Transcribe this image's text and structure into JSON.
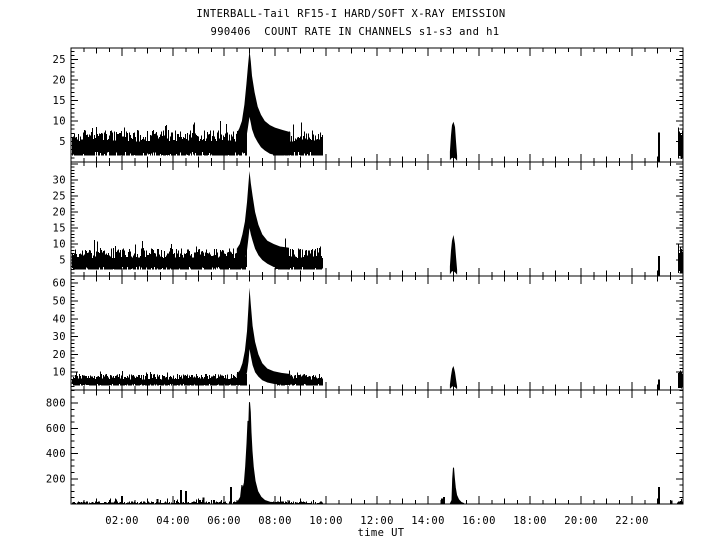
{
  "figure": {
    "title": "INTERBALL-Tail RF15-I HARD/SOFT X-RAY EMISSION",
    "subtitle": "990406  COUNT RATE IN CHANNELS s1-s3 and h1",
    "xlabel": "time UT",
    "fg_color": "#000000",
    "bg_color": "#ffffff"
  },
  "chart_data": {
    "type": "line",
    "title": "INTERBALL-Tail RF15-I HARD/SOFT X-RAY EMISSION",
    "subtitle": "990406  COUNT RATE IN CHANNELS s1-s3 and h1",
    "xlabel": "time UT",
    "grid": false,
    "legend": false,
    "noise_seed": 1999,
    "x_axis": {
      "lim": [
        0,
        24
      ],
      "labeled_hours": [
        2,
        4,
        6,
        8,
        10,
        12,
        14,
        16,
        18,
        20,
        22
      ],
      "tick_labels": [
        "02:00",
        "04:00",
        "06:00",
        "08:00",
        "10:00",
        "12:00",
        "14:00",
        "16:00",
        "18:00",
        "20:00",
        "22:00"
      ],
      "minor_step": 0.5
    },
    "panels": [
      {
        "id": "s1",
        "ylim": [
          0,
          27.8
        ],
        "ymajor": 5,
        "yminor": 1,
        "ylabels": [
          5,
          10,
          15,
          20,
          25
        ],
        "bands": [
          {
            "t": [
              0.02,
              6.88
            ],
            "lo": 1.6,
            "hi": 6.4,
            "jitter": 1.4,
            "spike": 2.5
          },
          {
            "t": [
              7.9,
              9.85
            ],
            "lo": 1.6,
            "hi": 6.4,
            "jitter": 1.4,
            "spike": 2.5
          },
          {
            "t": [
              23.78,
              23.97
            ],
            "lo": 0.8,
            "hi": 7.5,
            "jitter": 1.2,
            "spike": 1.0
          }
        ],
        "flares": [
          {
            "pts": [
              [
                6.5,
                1.6,
                7.0
              ],
              [
                6.6,
                1.9,
                8.2
              ],
              [
                6.7,
                2.6,
                10.0
              ],
              [
                6.8,
                4.0,
                14.0
              ],
              [
                6.88,
                6.0,
                19.0
              ],
              [
                6.94,
                8.5,
                23.5
              ],
              [
                7.0,
                11.0,
                27.3
              ],
              [
                7.05,
                9.5,
                24.5
              ],
              [
                7.1,
                8.0,
                21.0
              ],
              [
                7.2,
                6.2,
                17.0
              ],
              [
                7.32,
                4.8,
                13.5
              ],
              [
                7.45,
                3.6,
                11.5
              ],
              [
                7.6,
                2.8,
                10.0
              ],
              [
                7.8,
                2.0,
                9.0
              ],
              [
                8.0,
                1.7,
                8.4
              ],
              [
                8.3,
                1.6,
                7.8
              ],
              [
                8.6,
                1.6,
                7.3
              ]
            ]
          },
          {
            "pts": [
              [
                14.86,
                0.4,
                2.5
              ],
              [
                14.9,
                0.8,
                6.5
              ],
              [
                14.94,
                1.0,
                9.0
              ],
              [
                15.0,
                1.0,
                9.8
              ],
              [
                15.06,
                0.9,
                8.5
              ],
              [
                15.1,
                0.6,
                5.0
              ],
              [
                15.14,
                0.3,
                1.5
              ]
            ]
          }
        ],
        "curves": [],
        "spikes": [
          [
            23.05,
            7.2
          ]
        ]
      },
      {
        "id": "s2",
        "ylim": [
          0,
          35.6
        ],
        "ymajor": 5,
        "yminor": 1,
        "ylabels": [
          5,
          10,
          15,
          20,
          25,
          30
        ],
        "bands": [
          {
            "t": [
              0.02,
              6.9
            ],
            "lo": 2.0,
            "hi": 7.2,
            "jitter": 1.6,
            "spike": 2.5
          },
          {
            "t": [
              8.0,
              9.85
            ],
            "lo": 2.0,
            "hi": 7.2,
            "jitter": 1.6,
            "spike": 2.5
          },
          {
            "t": [
              23.78,
              23.97
            ],
            "lo": 1.0,
            "hi": 8.0,
            "jitter": 1.5,
            "spike": 1.0
          }
        ],
        "flares": [
          {
            "pts": [
              [
                6.5,
                2.0,
                8.5
              ],
              [
                6.62,
                2.5,
                10.0
              ],
              [
                6.72,
                3.5,
                13.0
              ],
              [
                6.82,
                5.0,
                17.0
              ],
              [
                6.9,
                8.0,
                23.0
              ],
              [
                6.96,
                12.0,
                29.0
              ],
              [
                7.0,
                15.0,
                32.8
              ],
              [
                7.05,
                13.0,
                29.0
              ],
              [
                7.12,
                11.0,
                25.0
              ],
              [
                7.22,
                8.5,
                20.0
              ],
              [
                7.35,
                6.5,
                16.0
              ],
              [
                7.5,
                5.0,
                13.0
              ],
              [
                7.7,
                3.8,
                11.0
              ],
              [
                7.95,
                2.8,
                10.0
              ],
              [
                8.2,
                2.3,
                9.2
              ],
              [
                8.55,
                2.0,
                8.8
              ]
            ]
          },
          {
            "pts": [
              [
                14.86,
                0.5,
                3.0
              ],
              [
                14.9,
                1.0,
                8.0
              ],
              [
                14.94,
                1.5,
                11.0
              ],
              [
                15.0,
                1.5,
                12.8
              ],
              [
                15.06,
                1.2,
                10.0
              ],
              [
                15.1,
                0.8,
                6.0
              ],
              [
                15.14,
                0.4,
                2.0
              ]
            ]
          }
        ],
        "curves": [],
        "spikes": [
          [
            23.05,
            6.2
          ]
        ]
      },
      {
        "id": "s3",
        "ylim": [
          0,
          64
        ],
        "ymajor": 10,
        "yminor": 2,
        "ylabels": [
          10,
          20,
          30,
          40,
          50,
          60
        ],
        "bands": [
          {
            "t": [
              0.02,
              6.9
            ],
            "lo": 2.6,
            "hi": 7.5,
            "jitter": 1.5,
            "spike": 2.0
          },
          {
            "t": [
              8.05,
              9.85
            ],
            "lo": 2.6,
            "hi": 7.5,
            "jitter": 1.5,
            "spike": 2.0
          },
          {
            "t": [
              23.78,
              23.97
            ],
            "lo": 1.0,
            "hi": 9.5,
            "jitter": 2.0,
            "spike": 1.0
          }
        ],
        "flares": [
          {
            "pts": [
              [
                6.5,
                2.6,
                9.0
              ],
              [
                6.62,
                3.0,
                11.0
              ],
              [
                6.72,
                4.0,
                15.0
              ],
              [
                6.82,
                6.0,
                22.0
              ],
              [
                6.9,
                10.0,
                33.0
              ],
              [
                6.96,
                16.0,
                47.0
              ],
              [
                7.0,
                23.0,
                57.5
              ],
              [
                7.05,
                19.0,
                48.0
              ],
              [
                7.12,
                14.0,
                36.0
              ],
              [
                7.22,
                10.0,
                27.0
              ],
              [
                7.35,
                7.5,
                20.0
              ],
              [
                7.5,
                5.5,
                15.0
              ],
              [
                7.7,
                4.2,
                12.0
              ],
              [
                7.95,
                3.4,
                10.5
              ],
              [
                8.25,
                3.0,
                9.6
              ],
              [
                8.6,
                2.8,
                9.0
              ]
            ]
          },
          {
            "pts": [
              [
                14.86,
                0.6,
                3.0
              ],
              [
                14.9,
                1.2,
                8.0
              ],
              [
                14.95,
                2.0,
                12.0
              ],
              [
                15.0,
                2.0,
                13.5
              ],
              [
                15.06,
                1.5,
                10.0
              ],
              [
                15.1,
                1.0,
                6.0
              ],
              [
                15.14,
                0.5,
                2.0
              ]
            ]
          }
        ],
        "curves": [],
        "spikes": [
          [
            23.05,
            6.0
          ]
        ]
      },
      {
        "id": "h1",
        "ylim": [
          0,
          905
        ],
        "ymajor": 200,
        "yminor": 50,
        "ylabels": [
          200,
          400,
          600,
          800
        ],
        "bands": [
          {
            "t": [
              0.02,
              9.85
            ],
            "lo": 2,
            "hi": 12,
            "jitter": 9,
            "spike": 30
          },
          {
            "t": [
              14.45,
              14.7
            ],
            "lo": 1,
            "hi": 6,
            "jitter": 5,
            "spike": 8
          },
          {
            "t": [
              23.75,
              23.97
            ],
            "lo": 1,
            "hi": 25,
            "jitter": 20,
            "spike": 15
          }
        ],
        "flares": [],
        "curves": [
          {
            "pts": [
              [
                6.4,
                6
              ],
              [
                6.55,
                20
              ],
              [
                6.65,
                55
              ],
              [
                6.7,
                150
              ],
              [
                6.74,
                120
              ],
              [
                6.8,
                170
              ],
              [
                6.85,
                300
              ],
              [
                6.9,
                480
              ],
              [
                6.94,
                660
              ],
              [
                6.97,
                600
              ],
              [
                7.0,
                808
              ],
              [
                7.03,
                730
              ],
              [
                7.06,
                570
              ],
              [
                7.1,
                420
              ],
              [
                7.15,
                290
              ],
              [
                7.22,
                180
              ],
              [
                7.32,
                100
              ],
              [
                7.45,
                55
              ],
              [
                7.6,
                28
              ],
              [
                7.8,
                14
              ],
              [
                8.05,
                8
              ]
            ]
          },
          {
            "pts": [
              [
                14.88,
                4
              ],
              [
                14.94,
                30
              ],
              [
                14.97,
                200
              ],
              [
                15.0,
                288
              ],
              [
                15.03,
                210
              ],
              [
                15.07,
                130
              ],
              [
                15.12,
                70
              ],
              [
                15.2,
                35
              ],
              [
                15.3,
                12
              ],
              [
                15.4,
                4
              ]
            ]
          }
        ],
        "spikes": [
          [
            2.0,
            62
          ],
          [
            3.4,
            40
          ],
          [
            4.32,
            112
          ],
          [
            4.5,
            104
          ],
          [
            5.05,
            30
          ],
          [
            5.2,
            50
          ],
          [
            5.6,
            30
          ],
          [
            6.28,
            135
          ],
          [
            14.55,
            42
          ],
          [
            14.62,
            55
          ],
          [
            23.05,
            135
          ],
          [
            23.55,
            28
          ]
        ]
      }
    ]
  }
}
